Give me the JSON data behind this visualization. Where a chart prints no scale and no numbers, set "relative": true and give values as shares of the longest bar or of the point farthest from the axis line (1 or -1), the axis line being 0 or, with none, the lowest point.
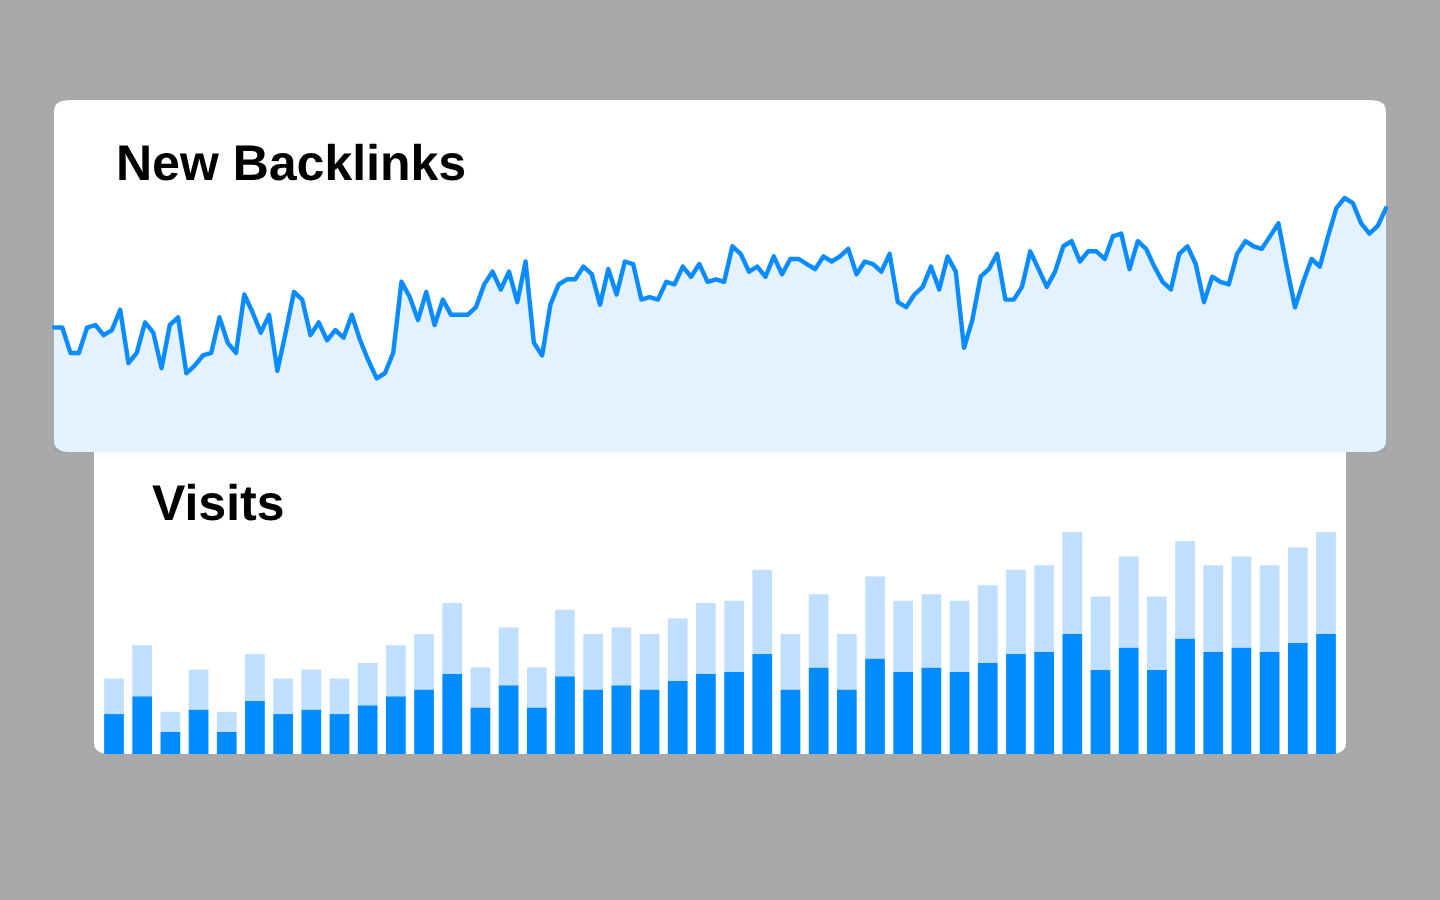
{
  "chart_data": [
    {
      "type": "area",
      "title": "New Backlinks",
      "relative": true,
      "categories": [
        null,
        null,
        null,
        null,
        null,
        null,
        null,
        null,
        null,
        null,
        null,
        null,
        null,
        null,
        null,
        null,
        null,
        null,
        null,
        null,
        null,
        null,
        null,
        null,
        null,
        null,
        null,
        null,
        null,
        null,
        null,
        null,
        null,
        null,
        null,
        null,
        null,
        null,
        null,
        null,
        null,
        null,
        null,
        null,
        null,
        null,
        null,
        null,
        null,
        null,
        null,
        null,
        null,
        null,
        null,
        null,
        null,
        null,
        null,
        null,
        null,
        null,
        null,
        null,
        null,
        null,
        null,
        null,
        null,
        null,
        null,
        null,
        null,
        null,
        null,
        null,
        null,
        null,
        null,
        null,
        null,
        null,
        null,
        null,
        null,
        null,
        null,
        null,
        null,
        null,
        null,
        null,
        null,
        null,
        null,
        null,
        null,
        null,
        null,
        null,
        null,
        null,
        null,
        null,
        null,
        null,
        null,
        null,
        null,
        null,
        null,
        null,
        null,
        null,
        null,
        null,
        null,
        null,
        null,
        null,
        null,
        null,
        null,
        null,
        null,
        null,
        null,
        null,
        null,
        null,
        null,
        null,
        null,
        null,
        null,
        null,
        null,
        null,
        null,
        null,
        null,
        null,
        null,
        null,
        null,
        null,
        null,
        null,
        null,
        null,
        null,
        null,
        null,
        null,
        null,
        null,
        null,
        null,
        null,
        null,
        null,
        null
      ],
      "series": [
        {
          "color": "#0a8cff",
          "values": [
            0.49,
            0.49,
            0.39,
            0.39,
            0.49,
            0.5,
            0.46,
            0.48,
            0.56,
            0.35,
            0.39,
            0.51,
            0.47,
            0.33,
            0.5,
            0.53,
            0.31,
            0.34,
            0.38,
            0.39,
            0.53,
            0.43,
            0.39,
            0.62,
            0.55,
            0.47,
            0.54,
            0.32,
            0.47,
            0.63,
            0.6,
            0.46,
            0.51,
            0.44,
            0.48,
            0.45,
            0.54,
            0.44,
            0.36,
            0.29,
            0.31,
            0.39,
            0.67,
            0.61,
            0.52,
            0.63,
            0.5,
            0.6,
            0.54,
            0.54,
            0.54,
            0.57,
            0.66,
            0.71,
            0.64,
            0.71,
            0.59,
            0.75,
            0.43,
            0.38,
            0.58,
            0.66,
            0.68,
            0.68,
            0.73,
            0.7,
            0.58,
            0.72,
            0.62,
            0.75,
            0.74,
            0.6,
            0.61,
            0.6,
            0.67,
            0.66,
            0.73,
            0.69,
            0.74,
            0.67,
            0.68,
            0.67,
            0.81,
            0.78,
            0.71,
            0.73,
            0.69,
            0.77,
            0.7,
            0.76,
            0.76,
            0.74,
            0.72,
            0.77,
            0.75,
            0.77,
            0.8,
            0.7,
            0.75,
            0.74,
            0.71,
            0.78,
            0.59,
            0.57,
            0.62,
            0.65,
            0.73,
            0.64,
            0.77,
            0.71,
            0.41,
            0.52,
            0.69,
            0.72,
            0.78,
            0.6,
            0.6,
            0.65,
            0.79,
            0.72,
            0.65,
            0.71,
            0.81,
            0.83,
            0.75,
            0.79,
            0.79,
            0.76,
            0.85,
            0.86,
            0.72,
            0.83,
            0.8,
            0.73,
            0.67,
            0.64,
            0.78,
            0.81,
            0.74,
            0.59,
            0.69,
            0.67,
            0.66,
            0.78,
            0.83,
            0.81,
            0.8,
            0.85,
            0.9,
            0.73,
            0.57,
            0.67,
            0.76,
            0.73,
            0.85,
            0.96,
            1.0,
            0.98,
            0.9,
            0.86,
            0.89,
            0.96
          ]
        }
      ]
    },
    {
      "type": "bar",
      "title": "Visits",
      "relative": true,
      "stacked": true,
      "categories": [
        null,
        null,
        null,
        null,
        null,
        null,
        null,
        null,
        null,
        null,
        null,
        null,
        null,
        null,
        null,
        null,
        null,
        null,
        null,
        null,
        null,
        null,
        null,
        null,
        null,
        null,
        null,
        null,
        null,
        null,
        null,
        null,
        null,
        null,
        null,
        null,
        null,
        null,
        null,
        null,
        null,
        null,
        null,
        null
      ],
      "series": [
        {
          "color": "#008cff",
          "values": [
            0.18,
            0.26,
            0.1,
            0.2,
            0.1,
            0.24,
            0.18,
            0.2,
            0.18,
            0.22,
            0.26,
            0.29,
            0.36,
            0.21,
            0.31,
            0.21,
            0.35,
            0.29,
            0.31,
            0.29,
            0.33,
            0.36,
            0.37,
            0.45,
            0.29,
            0.39,
            0.29,
            0.43,
            0.37,
            0.39,
            0.37,
            0.41,
            0.45,
            0.46,
            0.54,
            0.38,
            0.48,
            0.38,
            0.52,
            0.46,
            0.48,
            0.46,
            0.5,
            0.54
          ]
        },
        {
          "color": "#c0defd",
          "values": [
            0.16,
            0.23,
            0.09,
            0.18,
            0.09,
            0.21,
            0.16,
            0.18,
            0.16,
            0.19,
            0.23,
            0.25,
            0.32,
            0.18,
            0.26,
            0.18,
            0.3,
            0.25,
            0.26,
            0.25,
            0.28,
            0.32,
            0.32,
            0.38,
            0.25,
            0.33,
            0.25,
            0.37,
            0.32,
            0.33,
            0.32,
            0.35,
            0.38,
            0.39,
            0.46,
            0.33,
            0.41,
            0.33,
            0.44,
            0.39,
            0.41,
            0.39,
            0.43,
            0.46
          ]
        }
      ]
    }
  ]
}
